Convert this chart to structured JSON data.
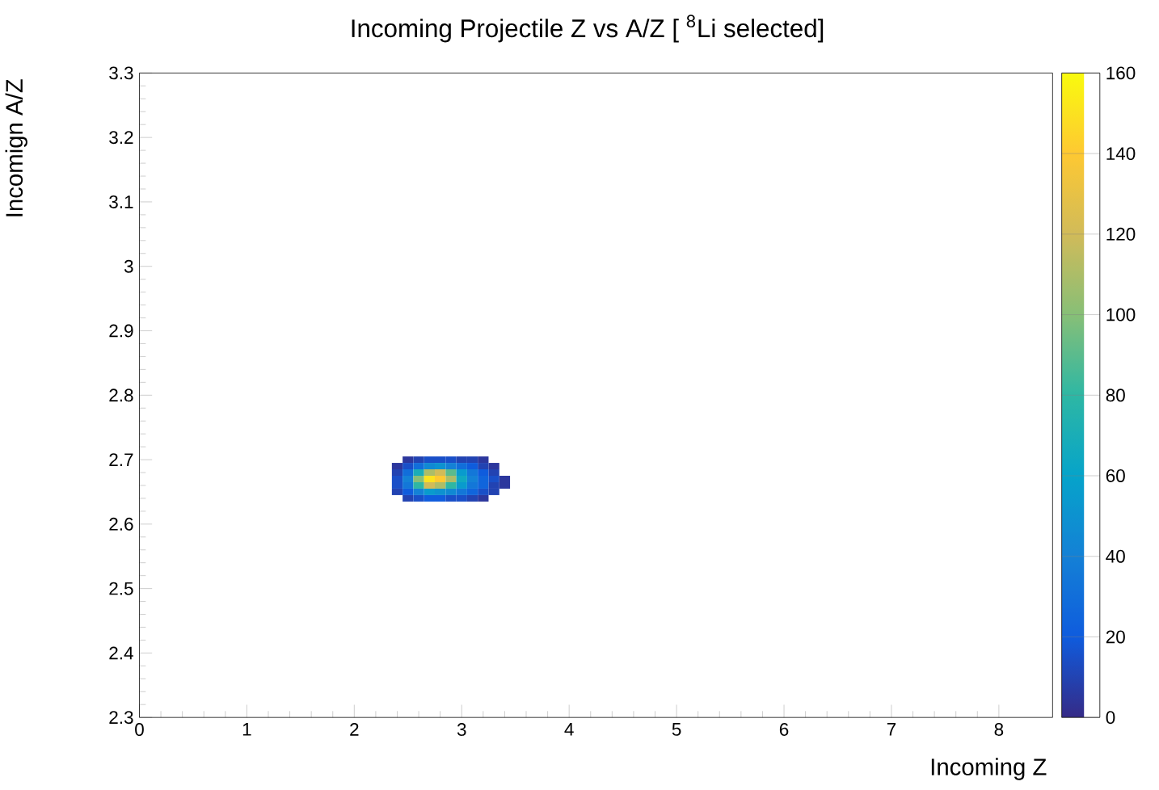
{
  "chart_data": {
    "type": "heatmap",
    "title": "Incoming Projectile Z vs A/Z [ $^{8}$Li selected]",
    "xlabel": "Incoming Z",
    "ylabel": "Incomign A/Z",
    "x": [
      2.4,
      2.5,
      2.6,
      2.7,
      2.8,
      2.9,
      3.0,
      3.1,
      3.2,
      3.3,
      3.4
    ],
    "y": [
      2.7,
      2.69,
      2.68,
      2.67,
      2.66,
      2.65,
      2.64
    ],
    "cells": [
      [
        null,
        5,
        10,
        15,
        15,
        15,
        10,
        10,
        5,
        null,
        null
      ],
      [
        5,
        15,
        30,
        45,
        50,
        40,
        30,
        20,
        10,
        5,
        null
      ],
      [
        10,
        30,
        70,
        110,
        120,
        90,
        55,
        35,
        20,
        10,
        null
      ],
      [
        15,
        40,
        100,
        150,
        140,
        110,
        65,
        40,
        25,
        15,
        5
      ],
      [
        15,
        35,
        80,
        120,
        110,
        80,
        55,
        35,
        25,
        10,
        5
      ],
      [
        10,
        20,
        40,
        55,
        50,
        45,
        35,
        25,
        15,
        10,
        null
      ],
      [
        null,
        10,
        15,
        20,
        20,
        15,
        15,
        10,
        5,
        null,
        null
      ]
    ],
    "clim": [
      0,
      160
    ],
    "cticks": [
      0,
      20,
      40,
      60,
      80,
      100,
      120,
      140,
      160
    ],
    "xlim": [
      0,
      8.5
    ],
    "xticks": [
      0,
      1,
      2,
      3,
      4,
      5,
      6,
      7,
      8
    ],
    "ylim": [
      2.3,
      3.3
    ],
    "yticks": [
      2.3,
      2.4,
      2.5,
      2.6,
      2.7,
      2.8,
      2.9,
      3,
      3.1,
      3.2,
      3.3
    ]
  }
}
